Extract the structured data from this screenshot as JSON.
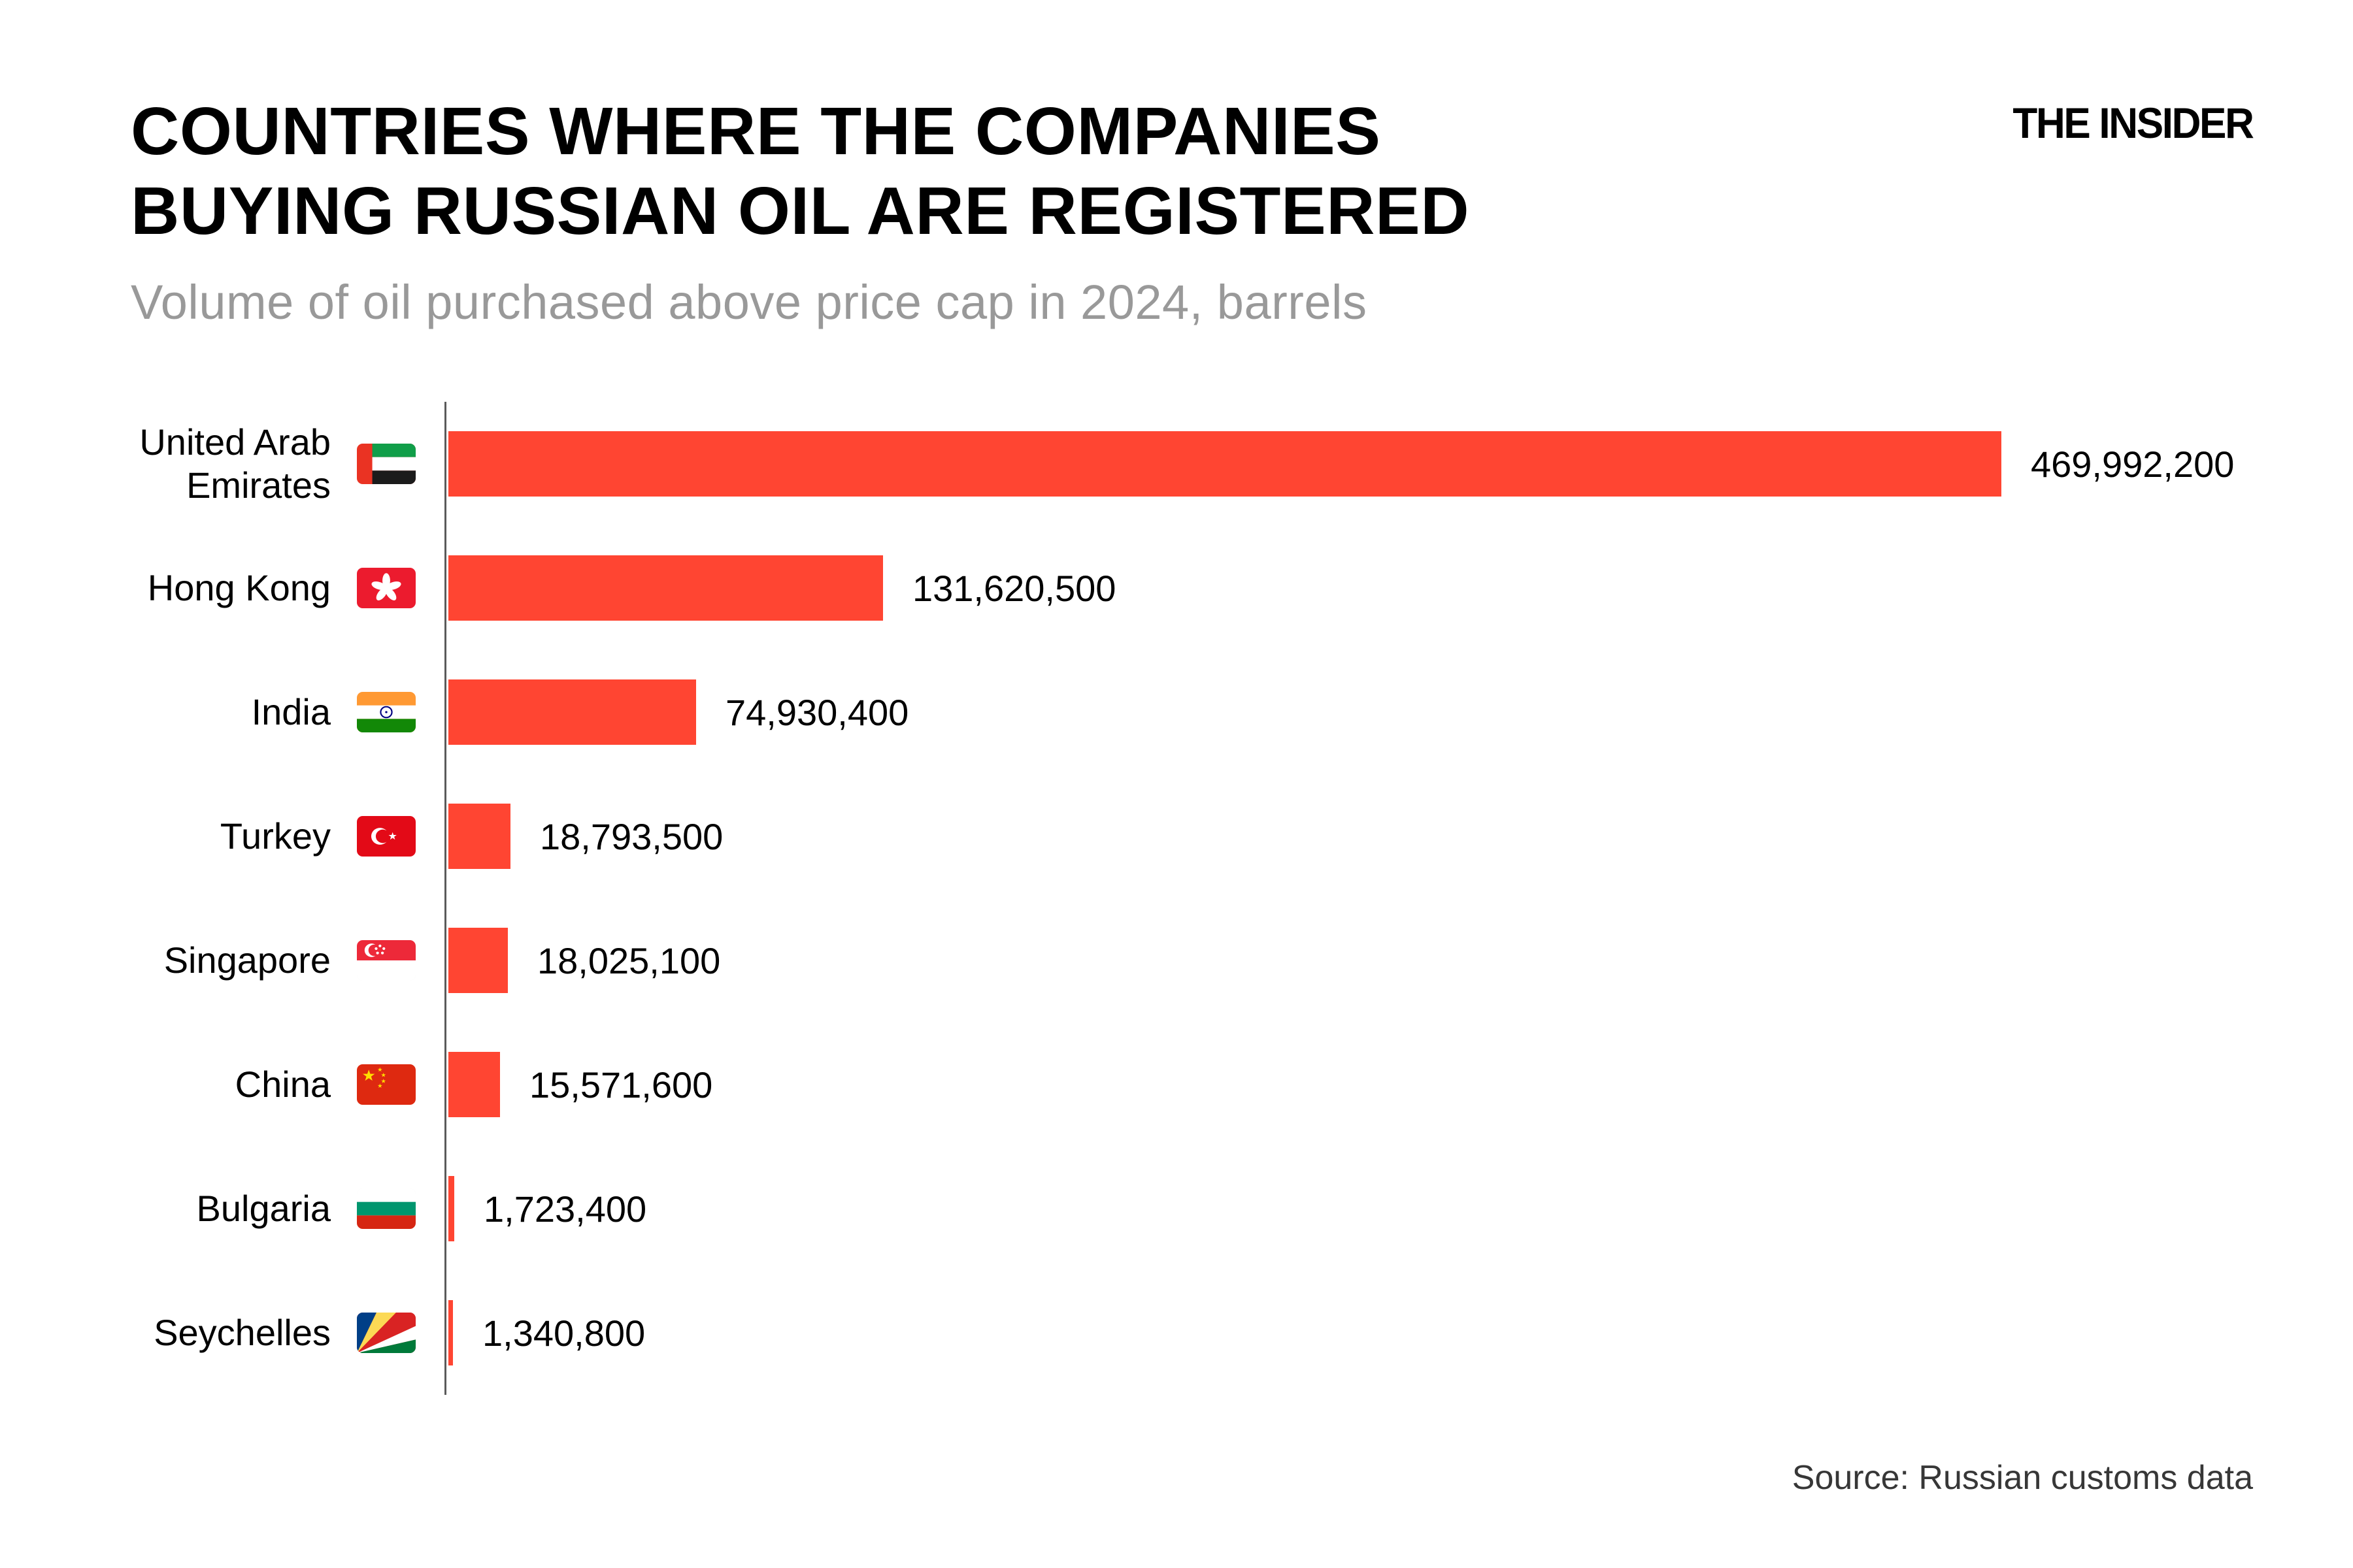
{
  "header": {
    "title_line1": "COUNTRIES WHERE THE COMPANIES",
    "title_line2": "BUYING RUSSIAN OIL ARE REGISTERED",
    "subtitle": "Volume of oil purchased above price cap in 2024, barrels",
    "logo_text": "THE INSIDER"
  },
  "footer": {
    "source": "Source: Russian customs data"
  },
  "chart_data": {
    "type": "bar",
    "orientation": "horizontal",
    "title": "COUNTRIES WHERE THE COMPANIES BUYING RUSSIAN OIL ARE REGISTERED",
    "subtitle": "Volume of oil purchased above price cap in 2024, barrels",
    "categories": [
      "United Arab Emirates",
      "Hong Kong",
      "India",
      "Turkey",
      "Singapore",
      "China",
      "Bulgaria",
      "Seychelles"
    ],
    "values": [
      469992200,
      131620500,
      74930400,
      18793500,
      18025100,
      15571600,
      1723400,
      1340800
    ],
    "value_labels": [
      "469,992,200",
      "131,620,500",
      "74,930,400",
      "18,793,500",
      "18,025,100",
      "15,571,600",
      "1,723,400",
      "1,340,800"
    ],
    "flag_icons": [
      "flag-united-arab-emirates",
      "flag-hong-kong",
      "flag-india",
      "flag-turkey",
      "flag-singapore",
      "flag-china",
      "flag-bulgaria",
      "flag-seychelles"
    ],
    "xlim": [
      0,
      470000000
    ],
    "grid": false,
    "legend": false,
    "bar_color": "#FF4532",
    "axis_color": "#5B5B5B",
    "source": "Source: Russian customs data"
  },
  "colors": {
    "background": "#ffffff",
    "bar": "#FF4532",
    "axis": "#5B5B5B",
    "title": "#000000",
    "subtitle": "#999999",
    "source": "#373737"
  }
}
